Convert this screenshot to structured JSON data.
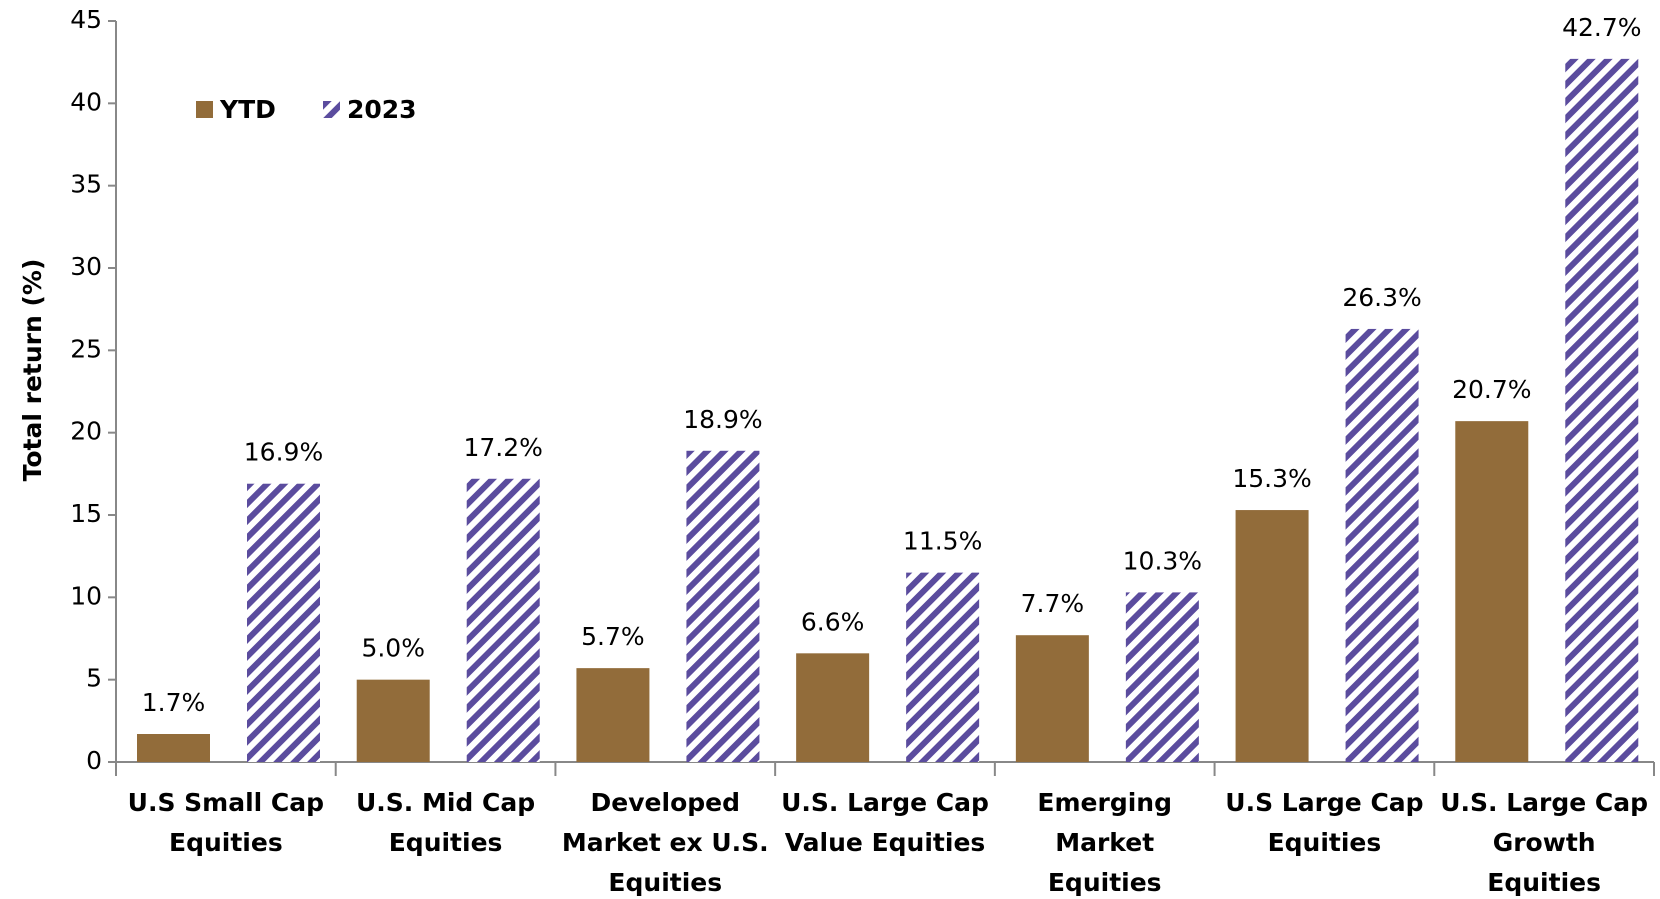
{
  "chart_data": {
    "type": "bar",
    "y_label": "Total return (%)",
    "categories": [
      [
        "U.S Small Cap",
        "Equities"
      ],
      [
        "U.S. Mid Cap",
        "Equities"
      ],
      [
        "Developed",
        "Market ex U.S.",
        "Equities"
      ],
      [
        "U.S. Large Cap",
        "Value Equities"
      ],
      [
        "Emerging",
        "Market",
        "Equities"
      ],
      [
        "U.S Large Cap",
        "Equities"
      ],
      [
        "U.S. Large Cap",
        "Growth",
        "Equities"
      ]
    ],
    "series": [
      {
        "name": "YTD",
        "color": "#926c3a",
        "values": [
          1.7,
          5.0,
          5.7,
          6.6,
          7.7,
          15.3,
          20.7
        ],
        "value_labels": [
          "1.7%",
          "5.0%",
          "5.7%",
          "6.6%",
          "7.7%",
          "15.3%",
          "20.7%"
        ]
      },
      {
        "name": "2023",
        "color": "#5b4c9e",
        "hatch": "diagonal",
        "values": [
          16.9,
          17.2,
          18.9,
          11.5,
          10.3,
          26.3,
          42.7
        ],
        "value_labels": [
          "16.9%",
          "17.2%",
          "18.9%",
          "11.5%",
          "10.3%",
          "26.3%",
          "42.7%"
        ]
      }
    ],
    "ylim": [
      0,
      45
    ],
    "yticks": [
      0,
      5,
      10,
      15,
      20,
      25,
      30,
      35,
      40,
      45
    ],
    "grid": false,
    "legend": "upper left"
  }
}
